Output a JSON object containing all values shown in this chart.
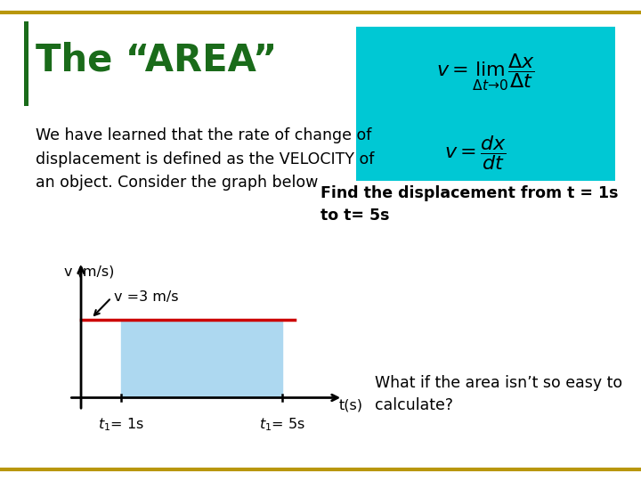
{
  "title": "The “AREA”",
  "body_text": "We have learned that the rate of change of\ndisplacement is defined as the VELOCITY of\nan object. Consider the graph below",
  "find_text": "Find the displacement from t = 1s\nto t= 5s",
  "what_text": "What if the area isn’t so easy to\ncalculate?",
  "v_label": "v (m/s)",
  "t_label": "t(s)",
  "v_value_label": "v =3 m/s",
  "t1_label": "t₁= 1s",
  "t2_label": "t₁= 5s",
  "velocity": 3,
  "t1": 1,
  "t2": 5,
  "t_max": 6.5,
  "v_max": 5.5,
  "bg_color": "#ffffff",
  "border_color": "#b8960c",
  "title_color": "#1a6b1a",
  "formula_bg": "#00c8d4",
  "rect_fill": "#add8f0",
  "line_color": "#cc0000",
  "axis_color": "#000000",
  "title_fontsize": 30,
  "body_fontsize": 12.5,
  "label_fontsize": 11.5
}
